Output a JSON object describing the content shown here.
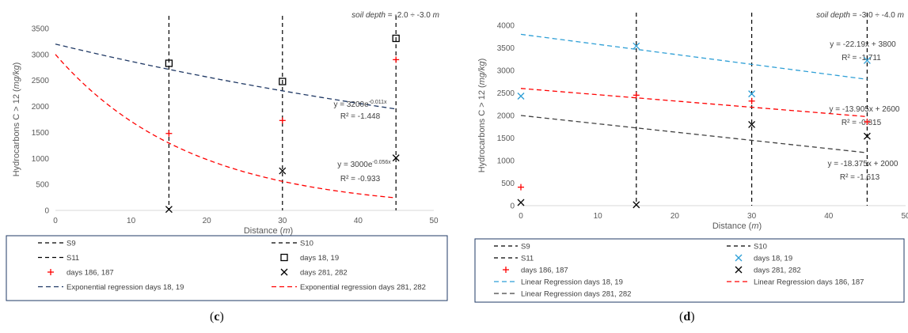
{
  "chart_data": [
    {
      "id": "c",
      "type": "scatter",
      "caption": {
        "open": "(",
        "letter": "c",
        "close": ")"
      },
      "note": {
        "prefix": "soil depth",
        "value": " = -2.0 ÷ -3.0 ",
        "unit": "m"
      },
      "xlabel": {
        "text": "Distance  (",
        "unit": "m",
        "close": ")"
      },
      "ylabel": {
        "text": "Hydrocarbons  C > 12 (",
        "unit": "mg/kg",
        "close": ")"
      },
      "xlim": [
        0,
        50
      ],
      "ylim": [
        0,
        3500
      ],
      "xticks": [
        0,
        10,
        20,
        30,
        40,
        50
      ],
      "yticks": [
        0,
        500,
        1000,
        1500,
        2000,
        2500,
        3000,
        3500
      ],
      "grid": false,
      "vlines": [
        {
          "name": "S9",
          "x": 15
        },
        {
          "name": "S10",
          "x": 30
        },
        {
          "name": "S11",
          "x": 45
        }
      ],
      "series": [
        {
          "name": "days 18, 19",
          "marker": "square",
          "color": "#000000",
          "x": [
            15,
            30,
            45
          ],
          "y": [
            2830,
            2480,
            3310
          ]
        },
        {
          "name": "days 186, 187",
          "marker": "plus",
          "color": "#ff0000",
          "x": [
            15,
            30,
            45
          ],
          "y": [
            1480,
            1730,
            2900
          ]
        },
        {
          "name": "days 281, 282",
          "marker": "cross",
          "color": "#000000",
          "x": [
            15,
            30,
            45
          ],
          "y": [
            20,
            760,
            1010
          ]
        }
      ],
      "trendlines": [
        {
          "name": "Exponential regression days 18, 19",
          "kind": "exp",
          "a": 3200,
          "b": -0.011,
          "color": "#1f3864",
          "x_range": [
            0,
            45
          ],
          "equation": "y = 3200e",
          "exponent": "-0.011x",
          "r2": "R² = -1.448"
        },
        {
          "name": "Exponential regression days 281, 282",
          "kind": "exp",
          "a": 3000,
          "b": -0.056,
          "color": "#ff0000",
          "x_range": [
            0,
            45
          ],
          "equation": "y = 3000e",
          "exponent": "-0.056x",
          "r2": "R² = -0.933"
        }
      ],
      "legend": {
        "placement": "bottom",
        "entries": [
          {
            "label": "S9",
            "kind": "vline"
          },
          {
            "label": "S10",
            "kind": "vline"
          },
          {
            "label": "S11",
            "kind": "vline"
          },
          {
            "label": "days 18, 19",
            "kind": "square",
            "color": "#000000"
          },
          {
            "label": "days 186, 187",
            "kind": "plus",
            "color": "#ff0000"
          },
          {
            "label": "days 281, 282",
            "kind": "cross",
            "color": "#000000"
          },
          {
            "label": "Exponential regression days 18, 19",
            "kind": "dash",
            "color": "#1f3864"
          },
          {
            "label": "Exponential regression days 281, 282",
            "kind": "dash",
            "color": "#ff0000"
          }
        ]
      }
    },
    {
      "id": "d",
      "type": "scatter",
      "caption": {
        "open": "(",
        "letter": "d",
        "close": ")"
      },
      "note": {
        "prefix": "soil depth",
        "value": " = -3.0 ÷ -4.0 ",
        "unit": "m"
      },
      "xlabel": {
        "text": "Distance  (",
        "unit": "m",
        "close": ")"
      },
      "ylabel": {
        "text": "Hydrocarbons  C > 12 (",
        "unit": "mg/kg",
        "close": ")"
      },
      "xlim": [
        0,
        50
      ],
      "ylim": [
        0,
        4000
      ],
      "xticks": [
        0,
        10,
        20,
        30,
        40,
        50
      ],
      "yticks": [
        0,
        500,
        1000,
        1500,
        2000,
        2500,
        3000,
        3500,
        4000
      ],
      "grid": false,
      "vlines": [
        {
          "name": "S9",
          "x": 15
        },
        {
          "name": "S10",
          "x": 30
        },
        {
          "name": "S11",
          "x": 45
        }
      ],
      "series": [
        {
          "name": "days 18, 19",
          "marker": "cross",
          "color": "#2e9fd6",
          "x": [
            0,
            15,
            30,
            45
          ],
          "y": [
            2430,
            3540,
            2480,
            3220
          ]
        },
        {
          "name": "days 186, 187",
          "marker": "plus",
          "color": "#ff0000",
          "x": [
            0,
            15,
            30,
            45
          ],
          "y": [
            410,
            2450,
            2320,
            1860
          ]
        },
        {
          "name": "days 281, 282",
          "marker": "cross",
          "color": "#000000",
          "x": [
            0,
            15,
            30,
            45
          ],
          "y": [
            70,
            20,
            1800,
            1540
          ]
        }
      ],
      "trendlines": [
        {
          "name": "Linear Regression days 18, 19",
          "kind": "linear",
          "slope": -22.19,
          "intercept": 3800,
          "color": "#2e9fd6",
          "x_range": [
            0,
            45
          ],
          "equation": "y = -22.19x + 3800",
          "r2": "R² = -1.711"
        },
        {
          "name": "Linear Regression days 186, 187",
          "kind": "linear",
          "slope": -13.905,
          "intercept": 2600,
          "color": "#ff0000",
          "x_range": [
            0,
            45
          ],
          "equation": "y = -13.905x + 2600",
          "r2": "R² = -0.815"
        },
        {
          "name": "Linear Regression days 281, 282",
          "kind": "linear",
          "slope": -18.375,
          "intercept": 2000,
          "color": "#404040",
          "x_range": [
            0,
            45
          ],
          "equation": "y = -18.375x + 2000",
          "r2": "R² = -1.613"
        }
      ],
      "legend": {
        "placement": "bottom",
        "entries": [
          {
            "label": "S9",
            "kind": "vline"
          },
          {
            "label": "S10",
            "kind": "vline"
          },
          {
            "label": "S11",
            "kind": "vline"
          },
          {
            "label": "days 18, 19",
            "kind": "cross",
            "color": "#2e9fd6"
          },
          {
            "label": "days 186, 187",
            "kind": "plus",
            "color": "#ff0000"
          },
          {
            "label": "days 281, 282",
            "kind": "cross",
            "color": "#000000"
          },
          {
            "label": "Linear Regression days 18, 19",
            "kind": "dash",
            "color": "#2e9fd6"
          },
          {
            "label": "Linear Regression days 186, 187",
            "kind": "dash",
            "color": "#ff0000"
          },
          {
            "label": "Linear Regression days 281, 282",
            "kind": "dash",
            "color": "#404040"
          }
        ]
      }
    }
  ]
}
